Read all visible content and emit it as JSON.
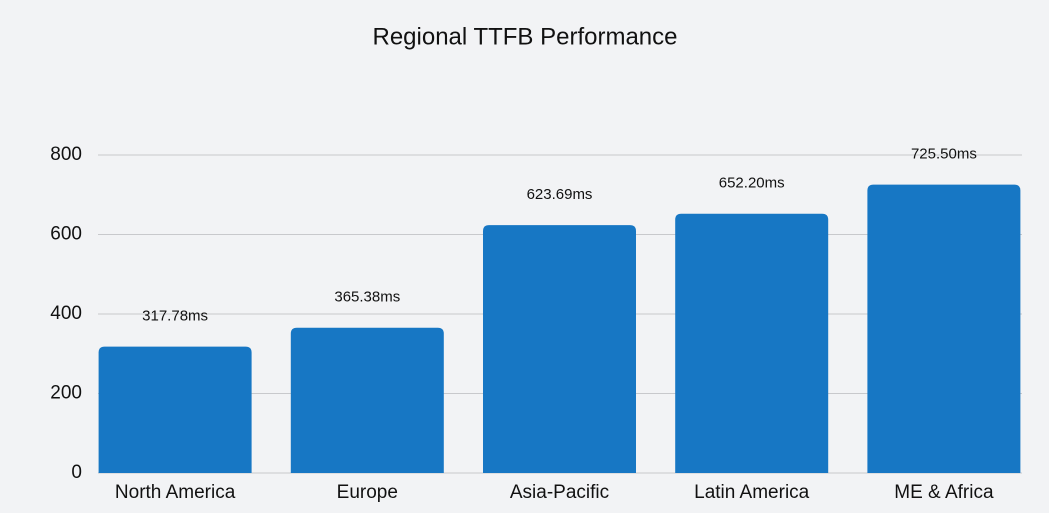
{
  "chart_data": {
    "type": "bar",
    "title": "Regional TTFB Performance",
    "categories": [
      "North America",
      "Europe",
      "Asia-Pacific",
      "Latin America",
      "ME & Africa"
    ],
    "values": [
      317.78,
      365.38,
      623.69,
      652.2,
      725.5
    ],
    "value_labels": [
      "317.78ms",
      "365.38ms",
      "623.69ms",
      "652.20ms",
      "725.50ms"
    ],
    "color": "#1777c4",
    "ylim": [
      0,
      800
    ],
    "yticks": [
      0,
      200,
      400,
      600,
      800
    ],
    "grid": true
  }
}
